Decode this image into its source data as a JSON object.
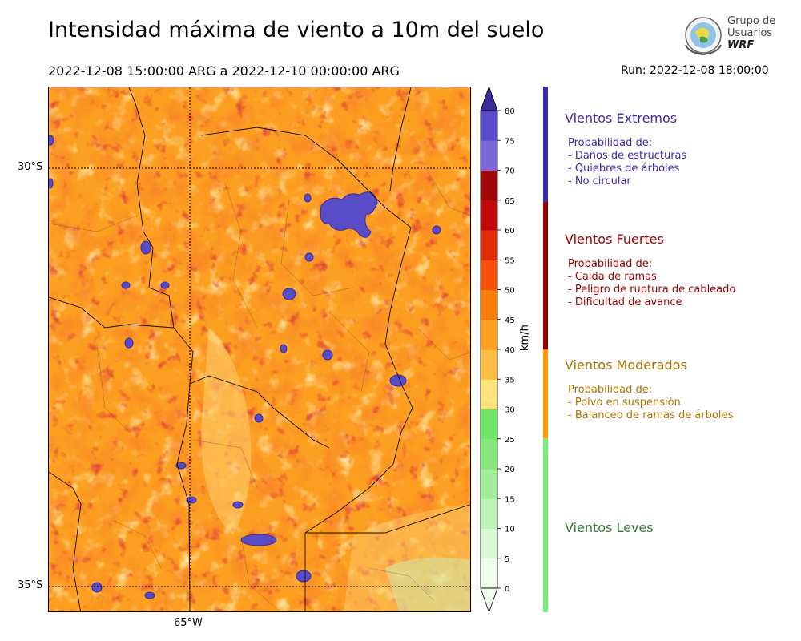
{
  "header": {
    "title": "Intensidad máxima de viento a 10m del suelo",
    "period": "2022-12-08 15:00:00 ARG  a  2022-12-10 00:00:00 ARG",
    "run": "Run: 2022-12-08 18:00:00"
  },
  "logo": {
    "line1": "Grupo de",
    "line2": "Usuarios",
    "line3": "WRF"
  },
  "map": {
    "lat_labels": [
      "30°S",
      "35°S"
    ],
    "lon_labels": [
      "65°W"
    ]
  },
  "colorbar": {
    "unit": "km/h",
    "ticks": [
      "0",
      "5",
      "10",
      "15",
      "20",
      "25",
      "30",
      "35",
      "40",
      "45",
      "50",
      "55",
      "60",
      "65",
      "70",
      "75",
      "80"
    ],
    "colors": [
      "#f2fdf0",
      "#d8f8d3",
      "#bdf2b6",
      "#a2ed99",
      "#86e87a",
      "#6fe565",
      "#fee27a",
      "#fdbd45",
      "#fd9f20",
      "#fa7d0b",
      "#f6500a",
      "#e22b0b",
      "#c00a0a",
      "#a00808",
      "#7966d8",
      "#5a4cc9",
      "#4336b8",
      "#3a2c9a"
    ]
  },
  "legend": {
    "extremos": {
      "title": "Vientos Extremos",
      "lines": [
        "Probabilidad de:",
        "- Daños de estructuras",
        "- Quiebres de árboles",
        "- No circular"
      ],
      "color": "#3b2bb0"
    },
    "fuertes": {
      "title": "Vientos Fuertes",
      "lines": [
        "Probabilidad de:",
        "- Caida de ramas",
        "- Peligro de ruptura de cableado",
        "- Dificultad de avance"
      ],
      "color": "#9b0000"
    },
    "moderados": {
      "title": "Vientos Moderados",
      "lines": [
        "Probabilidad de:",
        "- Polvo en suspensión",
        "- Balanceo de ramas de árboles"
      ],
      "color": "#b07000"
    },
    "leves": {
      "title": "Vientos Leves",
      "lines": [],
      "color": "#2f7d2f"
    },
    "bar_colors": [
      "#3b2bb0",
      "#9b0000",
      "#ff9a00",
      "#77ee77"
    ]
  }
}
